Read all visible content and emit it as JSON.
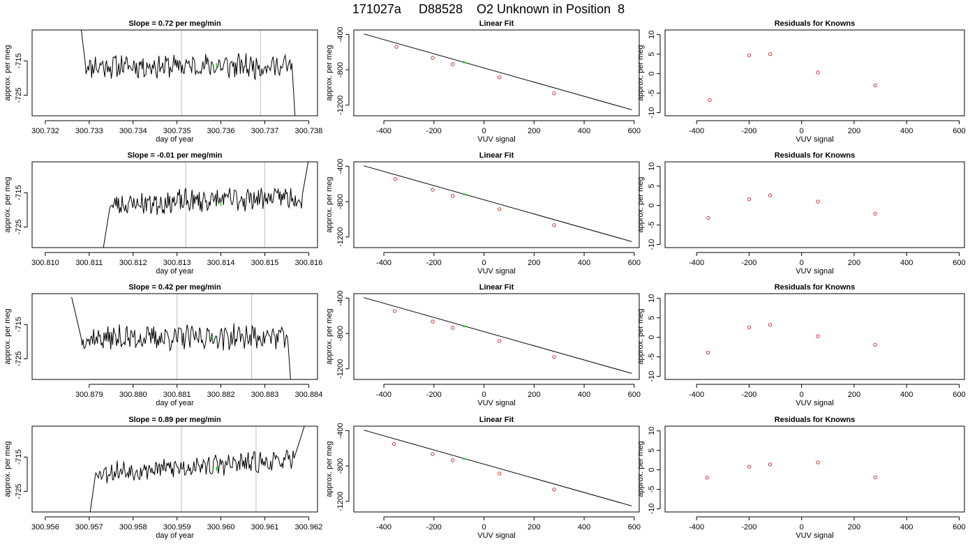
{
  "figure": {
    "title": "171027a     D88528    O2 Unknown in Position  8"
  },
  "colors": {
    "line": "#000000",
    "known": "#cc2222",
    "unknown": "#22cc22",
    "vline": "#c8c8c8",
    "axis": "#000000"
  },
  "chart_data": [
    {
      "type": "line",
      "panel": "time-1",
      "title": "Slope =  0.72  per meg/min",
      "xlabel": "day of year",
      "ylabel": "approx. per meg",
      "xlim": [
        300.7317,
        300.7382
      ],
      "ylim": [
        -731,
        -706
      ],
      "grid": false,
      "xticks": [
        300.732,
        300.733,
        300.734,
        300.735,
        300.736,
        300.737,
        300.738
      ],
      "xtick_labels": [
        "300.732",
        "300.733",
        "300.734",
        "300.735",
        "300.736",
        "300.737",
        "300.738"
      ],
      "yticks": [
        -715,
        -725
      ],
      "ytick_labels": [
        "-715",
        "-725"
      ],
      "vlines": [
        300.7351,
        300.7369
      ],
      "highlight": {
        "x": 300.7359,
        "y": -716.3
      },
      "trace": {
        "x_start": 300.7328,
        "x_end": 300.7377,
        "base": -716.5,
        "amp": 1.8,
        "trend": 0.0,
        "seed": 11,
        "start_y": -704,
        "start_drop_until": 300.73292,
        "end_y": -734,
        "end_drop_from": 300.73762
      }
    },
    {
      "type": "line",
      "panel": "time-2",
      "title": "Slope =  -0.01  per meg/min",
      "xlabel": "day of year",
      "ylabel": "approx. per meg",
      "xlim": [
        300.8097,
        300.8162
      ],
      "ylim": [
        -731,
        -706
      ],
      "grid": false,
      "xticks": [
        300.81,
        300.811,
        300.812,
        300.813,
        300.814,
        300.815,
        300.816
      ],
      "xtick_labels": [
        "300.810",
        "300.811",
        "300.812",
        "300.813",
        "300.814",
        "300.815",
        "300.816"
      ],
      "yticks": [
        -715,
        -725
      ],
      "ytick_labels": [
        "-715",
        "-725"
      ],
      "vlines": [
        300.8132,
        300.815
      ],
      "highlight": {
        "x": 300.814,
        "y": -718.2
      },
      "trace": {
        "x_start": 300.8113,
        "x_end": 300.816,
        "base": -718.5,
        "amp": 1.8,
        "trend": 2.5,
        "seed": 23,
        "start_y": -733,
        "start_drop_until": 300.81148,
        "end_y": -705,
        "end_drop_from": 300.81585
      }
    },
    {
      "type": "line",
      "panel": "time-3",
      "title": "Slope =  0.42  per meg/min",
      "xlabel": "day of year",
      "ylabel": "approx. per meg",
      "xlim": [
        300.8777,
        300.8842
      ],
      "ylim": [
        -731,
        -706
      ],
      "grid": false,
      "xticks": [
        300.879,
        300.88,
        300.881,
        300.882,
        300.883,
        300.884
      ],
      "xtick_labels": [
        "300.879",
        "300.880",
        "300.881",
        "300.882",
        "300.883",
        "300.884"
      ],
      "yticks": [
        -715,
        -725
      ],
      "ytick_labels": [
        "-715",
        "-725"
      ],
      "vlines": [
        300.881,
        300.8827
      ],
      "highlight": {
        "x": 300.8818,
        "y": -719.0
      },
      "trace": {
        "x_start": 300.8786,
        "x_end": 300.8836,
        "base": -719.0,
        "amp": 1.9,
        "trend": 0.5,
        "seed": 37,
        "start_y": -707,
        "start_drop_until": 300.87882,
        "end_y": -734,
        "end_drop_from": 300.88352
      }
    },
    {
      "type": "line",
      "panel": "time-4",
      "title": "Slope =  0.89  per meg/min",
      "xlabel": "day of year",
      "ylabel": "approx. per meg",
      "xlim": [
        300.9557,
        300.9622
      ],
      "ylim": [
        -731,
        -706
      ],
      "grid": false,
      "xticks": [
        300.956,
        300.957,
        300.958,
        300.959,
        300.96,
        300.961,
        300.962
      ],
      "xtick_labels": [
        "300.956",
        "300.957",
        "300.958",
        "300.959",
        "300.960",
        "300.961",
        "300.962"
      ],
      "yticks": [
        -715,
        -725
      ],
      "ytick_labels": [
        "-715",
        "-725"
      ],
      "vlines": [
        300.9591,
        300.9608
      ],
      "highlight": {
        "x": 300.9599,
        "y": -718.4
      },
      "trace": {
        "x_start": 300.957,
        "x_end": 300.9619,
        "base": -719.5,
        "amp": 1.6,
        "trend": 3.5,
        "seed": 53,
        "start_y": -733,
        "start_drop_until": 300.95715,
        "end_y": -706,
        "end_drop_from": 300.96165
      }
    },
    {
      "type": "scatter",
      "panel": "fit-1",
      "title": "Linear Fit",
      "xlabel": "VUV signal",
      "ylabel": "approx. per meg",
      "xlim": [
        -520,
        620
      ],
      "ylim": [
        -1320,
        -350
      ],
      "grid": false,
      "xticks": [
        -400,
        -200,
        0,
        200,
        400,
        600
      ],
      "xtick_labels": [
        "-400",
        "-200",
        "0",
        "200",
        "400",
        "600"
      ],
      "yticks": [
        -400,
        -800,
        -1200
      ],
      "ytick_labels": [
        "-400",
        "-800",
        "-1200"
      ],
      "fit_line": {
        "x": [
          -480,
          590
        ],
        "y": [
          -395,
          -1252
        ]
      },
      "knowns": {
        "x": [
          -350,
          -205,
          -125,
          62,
          280
        ],
        "y": [
          -540,
          -665,
          -736,
          -885,
          -1066
        ]
      },
      "unknown": {
        "x": -80,
        "y": -715
      }
    },
    {
      "type": "scatter",
      "panel": "fit-2",
      "title": "Linear Fit",
      "xlabel": "VUV signal",
      "ylabel": "approx. per meg",
      "xlim": [
        -520,
        620
      ],
      "ylim": [
        -1320,
        -350
      ],
      "grid": false,
      "xticks": [
        -400,
        -200,
        0,
        200,
        400,
        600
      ],
      "xtick_labels": [
        "-400",
        "-200",
        "0",
        "200",
        "400",
        "600"
      ],
      "yticks": [
        -400,
        -800,
        -1200
      ],
      "ytick_labels": [
        "-400",
        "-800",
        "-1200"
      ],
      "fit_line": {
        "x": [
          -480,
          590
        ],
        "y": [
          -395,
          -1252
        ]
      },
      "knowns": {
        "x": [
          -355,
          -205,
          -125,
          62,
          280
        ],
        "y": [
          -545,
          -665,
          -736,
          -885,
          -1066
        ]
      },
      "unknown": {
        "x": -80,
        "y": -718
      }
    },
    {
      "type": "scatter",
      "panel": "fit-3",
      "title": "Linear Fit",
      "xlabel": "VUV signal",
      "ylabel": "approx. per meg",
      "xlim": [
        -520,
        620
      ],
      "ylim": [
        -1320,
        -350
      ],
      "grid": false,
      "xticks": [
        -400,
        -200,
        0,
        200,
        400,
        600
      ],
      "xtick_labels": [
        "-400",
        "-200",
        "0",
        "200",
        "400",
        "600"
      ],
      "yticks": [
        -400,
        -800,
        -1200
      ],
      "ytick_labels": [
        "-400",
        "-800",
        "-1200"
      ],
      "fit_line": {
        "x": [
          -480,
          590
        ],
        "y": [
          -395,
          -1252
        ]
      },
      "knowns": {
        "x": [
          -357,
          -205,
          -125,
          62,
          280
        ],
        "y": [
          -547,
          -665,
          -736,
          -885,
          -1066
        ]
      },
      "unknown": {
        "x": -80,
        "y": -719
      }
    },
    {
      "type": "scatter",
      "panel": "fit-4",
      "title": "Linear Fit",
      "xlabel": "VUV signal",
      "ylabel": "approx. per meg",
      "xlim": [
        -520,
        620
      ],
      "ylim": [
        -1320,
        -350
      ],
      "grid": false,
      "xticks": [
        -400,
        -200,
        0,
        200,
        400,
        600
      ],
      "xtick_labels": [
        "-400",
        "-200",
        "0",
        "200",
        "400",
        "600"
      ],
      "yticks": [
        -400,
        -800,
        -1200
      ],
      "ytick_labels": [
        "-400",
        "-800",
        "-1200"
      ],
      "fit_line": {
        "x": [
          -480,
          590
        ],
        "y": [
          -395,
          -1252
        ]
      },
      "knowns": {
        "x": [
          -360,
          -205,
          -125,
          62,
          280
        ],
        "y": [
          -550,
          -665,
          -736,
          -885,
          -1066
        ]
      },
      "unknown": {
        "x": -80,
        "y": -718
      }
    },
    {
      "type": "scatter",
      "panel": "resid-1",
      "title": "Residuals for Knowns",
      "xlabel": "VUV signal",
      "ylabel": "approx. per meg",
      "xlim": [
        -520,
        620
      ],
      "ylim": [
        -10.8,
        11.2
      ],
      "grid": false,
      "xticks": [
        -400,
        -200,
        0,
        200,
        400,
        600
      ],
      "xtick_labels": [
        "-400",
        "-200",
        "0",
        "200",
        "400",
        "600"
      ],
      "yticks": [
        10,
        5,
        0,
        -5,
        -10
      ],
      "ytick_labels": [
        "10",
        "5",
        "0",
        "-5",
        "-10"
      ],
      "points": {
        "x": [
          -350,
          -200,
          -120,
          62,
          280
        ],
        "y": [
          -6.8,
          4.7,
          5.0,
          0.3,
          -3.0
        ]
      }
    },
    {
      "type": "scatter",
      "panel": "resid-2",
      "title": "Residuals for Knowns",
      "xlabel": "VUV signal",
      "ylabel": "approx. per meg",
      "xlim": [
        -520,
        620
      ],
      "ylim": [
        -10.8,
        11.2
      ],
      "grid": false,
      "xticks": [
        -400,
        -200,
        0,
        200,
        400,
        600
      ],
      "xtick_labels": [
        "-400",
        "-200",
        "0",
        "200",
        "400",
        "600"
      ],
      "yticks": [
        10,
        5,
        0,
        -5,
        -10
      ],
      "ytick_labels": [
        "10",
        "5",
        "0",
        "-5",
        "-10"
      ],
      "points": {
        "x": [
          -355,
          -200,
          -120,
          62,
          280
        ],
        "y": [
          -3.2,
          1.6,
          2.6,
          1.0,
          -2.1
        ]
      }
    },
    {
      "type": "scatter",
      "panel": "resid-3",
      "title": "Residuals for Knowns",
      "xlabel": "VUV signal",
      "ylabel": "approx. per meg",
      "xlim": [
        -520,
        620
      ],
      "ylim": [
        -10.8,
        11.2
      ],
      "grid": false,
      "xticks": [
        -400,
        -200,
        0,
        200,
        400,
        600
      ],
      "xtick_labels": [
        "-400",
        "-200",
        "0",
        "200",
        "400",
        "600"
      ],
      "yticks": [
        10,
        5,
        0,
        -5,
        -10
      ],
      "ytick_labels": [
        "10",
        "5",
        "0",
        "-5",
        "-10"
      ],
      "points": {
        "x": [
          -357,
          -200,
          -120,
          62,
          280
        ],
        "y": [
          -3.9,
          2.5,
          3.2,
          0.3,
          -1.9
        ]
      }
    },
    {
      "type": "scatter",
      "panel": "resid-4",
      "title": "Residuals for Knowns",
      "xlabel": "VUV signal",
      "ylabel": "approx. per meg",
      "xlim": [
        -520,
        620
      ],
      "ylim": [
        -10.8,
        11.2
      ],
      "grid": false,
      "xticks": [
        -400,
        -200,
        0,
        200,
        400,
        600
      ],
      "xtick_labels": [
        "-400",
        "-200",
        "0",
        "200",
        "400",
        "600"
      ],
      "yticks": [
        10,
        5,
        0,
        -5,
        -10
      ],
      "ytick_labels": [
        "10",
        "5",
        "0",
        "-5",
        "-10"
      ],
      "points": {
        "x": [
          -360,
          -200,
          -120,
          62,
          280
        ],
        "y": [
          -2.0,
          0.8,
          1.4,
          1.9,
          -1.9
        ]
      }
    }
  ]
}
